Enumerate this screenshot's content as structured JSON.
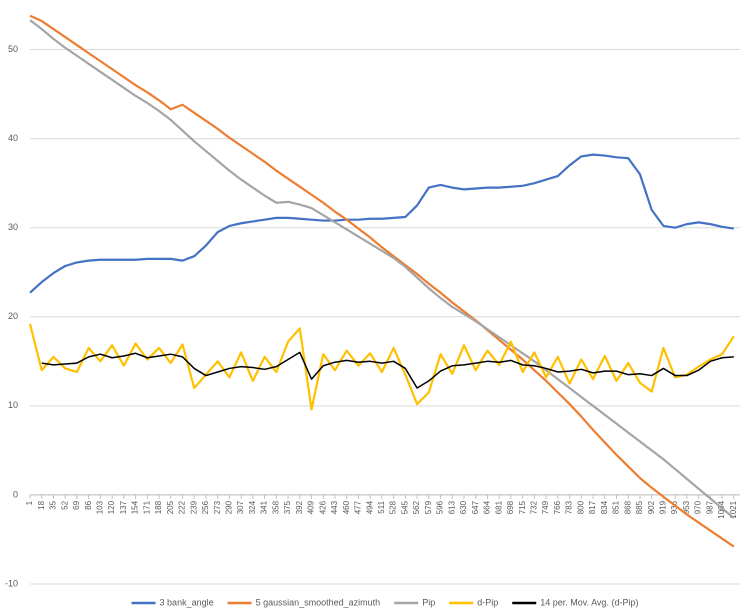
{
  "chart_data": {
    "type": "line",
    "x": [
      1,
      18,
      35,
      52,
      69,
      86,
      103,
      120,
      137,
      154,
      171,
      188,
      205,
      222,
      239,
      256,
      273,
      290,
      307,
      324,
      341,
      358,
      375,
      392,
      409,
      426,
      443,
      460,
      477,
      494,
      511,
      528,
      545,
      562,
      579,
      596,
      613,
      630,
      647,
      664,
      681,
      698,
      715,
      732,
      749,
      766,
      783,
      800,
      817,
      834,
      851,
      868,
      885,
      902,
      919,
      936,
      953,
      970,
      987,
      1004,
      1021
    ],
    "xlim": [
      1,
      1030
    ],
    "xticks": [
      1,
      18,
      35,
      52,
      69,
      86,
      103,
      120,
      137,
      154,
      171,
      188,
      205,
      222,
      239,
      256,
      273,
      290,
      307,
      324,
      341,
      358,
      375,
      392,
      409,
      426,
      443,
      460,
      477,
      494,
      511,
      528,
      545,
      562,
      579,
      596,
      613,
      630,
      647,
      664,
      681,
      698,
      715,
      732,
      749,
      766,
      783,
      800,
      817,
      834,
      851,
      868,
      885,
      902,
      919,
      936,
      953,
      970,
      987,
      1004,
      1021
    ],
    "ylim": [
      -10,
      55
    ],
    "yticks": [
      -10,
      0,
      10,
      20,
      30,
      40,
      50
    ],
    "grid": true,
    "legend": "bottom",
    "series": [
      {
        "name": "3 bank_angle",
        "color": "#4472c4",
        "values": [
          22.7,
          23.9,
          24.9,
          25.7,
          26.1,
          26.3,
          26.4,
          26.4,
          26.4,
          26.4,
          26.5,
          26.5,
          26.5,
          26.3,
          26.8,
          28.0,
          29.5,
          30.2,
          30.5,
          30.7,
          30.9,
          31.1,
          31.1,
          31.0,
          30.9,
          30.8,
          30.8,
          30.9,
          30.9,
          31.0,
          31.0,
          31.1,
          31.2,
          32.5,
          34.5,
          34.8,
          34.5,
          34.3,
          34.4,
          34.5,
          34.5,
          34.6,
          34.7,
          35.0,
          35.4,
          35.8,
          37.0,
          38.0,
          38.2,
          38.1,
          37.9,
          37.8,
          36.0,
          32.0,
          30.2,
          30.0,
          30.4,
          30.6,
          30.4,
          30.1,
          29.9
        ]
      },
      {
        "name": "5 gaussian_smoothed_azimuth",
        "color": "#ed7d31",
        "values": [
          53.8,
          53.2,
          52.3,
          51.4,
          50.5,
          49.6,
          48.7,
          47.8,
          46.9,
          46.0,
          45.2,
          44.3,
          43.3,
          43.8,
          42.9,
          42.0,
          41.1,
          40.1,
          39.2,
          38.3,
          37.4,
          36.4,
          35.5,
          34.6,
          33.7,
          32.8,
          31.8,
          30.9,
          29.9,
          28.9,
          27.8,
          26.8,
          25.8,
          24.8,
          23.7,
          22.7,
          21.6,
          20.6,
          19.6,
          18.5,
          17.4,
          16.3,
          15.2,
          14.0,
          12.8,
          11.5,
          10.2,
          8.8,
          7.3,
          5.9,
          4.5,
          3.2,
          1.9,
          0.8,
          -0.2,
          -1.2,
          -2.2,
          -3.1,
          -4.0,
          -4.9,
          -5.8
        ]
      },
      {
        "name": "Pip",
        "color": "#a5a5a5",
        "values": [
          53.3,
          52.3,
          51.2,
          50.2,
          49.3,
          48.4,
          47.5,
          46.6,
          45.7,
          44.8,
          44.0,
          43.1,
          42.1,
          40.9,
          39.7,
          38.6,
          37.5,
          36.4,
          35.4,
          34.5,
          33.6,
          32.8,
          32.9,
          32.6,
          32.2,
          31.4,
          30.6,
          29.8,
          29.0,
          28.2,
          27.4,
          26.6,
          25.6,
          24.4,
          23.2,
          22.1,
          21.1,
          20.3,
          19.5,
          18.6,
          17.7,
          16.8,
          15.9,
          15.0,
          14.0,
          13.0,
          12.0,
          11.0,
          10.0,
          9.0,
          8.0,
          7.0,
          6.0,
          5.0,
          4.0,
          2.9,
          1.8,
          0.7,
          -0.4,
          -1.5,
          -2.6
        ]
      },
      {
        "name": "d-Pip",
        "color": "#ffc000",
        "values": [
          19.2,
          14.0,
          15.5,
          14.2,
          13.8,
          16.5,
          15.0,
          16.8,
          14.5,
          17.0,
          15.2,
          16.5,
          14.8,
          16.9,
          12.0,
          13.5,
          15.0,
          13.2,
          16.0,
          12.8,
          15.5,
          13.8,
          17.2,
          18.7,
          9.6,
          15.8,
          14.0,
          16.2,
          14.5,
          15.9,
          13.8,
          16.5,
          13.5,
          10.2,
          11.5,
          15.8,
          13.6,
          16.8,
          14.0,
          16.2,
          14.6,
          17.2,
          13.8,
          16.0,
          13.2,
          15.5,
          12.5,
          15.2,
          13.0,
          15.6,
          12.8,
          14.8,
          12.6,
          11.6,
          16.5,
          13.2,
          13.5,
          14.4,
          15.2,
          15.8,
          17.8
        ]
      },
      {
        "name": "14 per. Mov. Avg. (d-Pip)",
        "color": "#000000",
        "values": [
          null,
          14.8,
          14.6,
          14.7,
          14.8,
          15.5,
          15.8,
          15.4,
          15.6,
          15.9,
          15.4,
          15.6,
          15.8,
          15.5,
          14.2,
          13.4,
          13.8,
          14.2,
          14.4,
          14.3,
          14.1,
          14.4,
          15.2,
          16.0,
          13.0,
          14.5,
          14.9,
          15.1,
          14.9,
          15.0,
          14.8,
          15.0,
          14.2,
          12.0,
          12.8,
          13.9,
          14.5,
          14.6,
          14.8,
          15.0,
          14.9,
          15.1,
          14.6,
          14.5,
          14.2,
          13.8,
          13.9,
          14.1,
          13.7,
          13.9,
          13.9,
          13.5,
          13.6,
          13.4,
          14.2,
          13.4,
          13.4,
          14.0,
          15.0,
          15.4,
          15.5
        ]
      }
    ]
  }
}
